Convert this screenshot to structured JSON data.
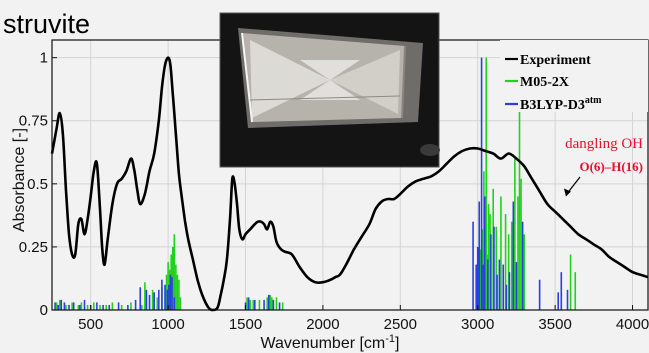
{
  "chart_data": {
    "type": "line",
    "title": "struvite",
    "xlabel": "Wavenumber [cm",
    "xlabel_sup": "-1",
    "xlabel_end": "]",
    "ylabel": "Absorbance [-]",
    "xlim": [
      250,
      4100
    ],
    "ylim": [
      0,
      1.07
    ],
    "xticks": [
      500,
      1000,
      1500,
      2000,
      2500,
      3000,
      3500,
      4000
    ],
    "yticks": [
      0,
      0.25,
      0.5,
      0.75,
      1
    ],
    "ytick_labels": [
      "0",
      "0.25",
      "0.5",
      "0.75",
      "1"
    ],
    "grid": true,
    "legend_position": "top-right",
    "series": [
      {
        "name": "Experiment",
        "color": "#000000",
        "style": "line",
        "x": [
          250,
          280,
          300,
          320,
          340,
          360,
          380,
          400,
          420,
          440,
          460,
          480,
          500,
          520,
          540,
          560,
          575,
          590,
          610,
          640,
          670,
          700,
          730,
          760,
          780,
          800,
          820,
          850,
          880,
          910,
          940,
          960,
          980,
          1000,
          1015,
          1030,
          1050,
          1070,
          1090,
          1110,
          1130,
          1160,
          1190,
          1220,
          1260,
          1290,
          1320,
          1340,
          1360,
          1380,
          1400,
          1415,
          1430,
          1445,
          1460,
          1480,
          1500,
          1530,
          1560,
          1580,
          1600,
          1620,
          1640,
          1660,
          1680,
          1700,
          1730,
          1760,
          1800,
          1850,
          1900,
          1950,
          2000,
          2050,
          2080,
          2110,
          2150,
          2200,
          2250,
          2300,
          2340,
          2380,
          2420,
          2460,
          2500,
          2550,
          2600,
          2650,
          2700,
          2750,
          2800,
          2850,
          2900,
          2950,
          3000,
          3050,
          3100,
          3150,
          3200,
          3250,
          3300,
          3350,
          3400,
          3450,
          3500,
          3550,
          3600,
          3650,
          3700,
          3750,
          3800,
          3850,
          3900,
          3950,
          4000,
          4050,
          4100
        ],
        "values": [
          0.62,
          0.72,
          0.78,
          0.7,
          0.48,
          0.3,
          0.22,
          0.22,
          0.34,
          0.36,
          0.3,
          0.36,
          0.45,
          0.55,
          0.58,
          0.4,
          0.24,
          0.18,
          0.28,
          0.42,
          0.5,
          0.52,
          0.55,
          0.6,
          0.56,
          0.48,
          0.42,
          0.46,
          0.55,
          0.62,
          0.75,
          0.88,
          0.97,
          1.0,
          0.97,
          0.86,
          0.7,
          0.54,
          0.44,
          0.35,
          0.28,
          0.2,
          0.12,
          0.06,
          0.01,
          0.0,
          0.01,
          0.06,
          0.12,
          0.2,
          0.36,
          0.52,
          0.5,
          0.42,
          0.32,
          0.28,
          0.3,
          0.32,
          0.34,
          0.35,
          0.35,
          0.34,
          0.32,
          0.35,
          0.33,
          0.27,
          0.24,
          0.23,
          0.22,
          0.17,
          0.13,
          0.11,
          0.11,
          0.12,
          0.13,
          0.14,
          0.18,
          0.24,
          0.29,
          0.34,
          0.4,
          0.43,
          0.44,
          0.44,
          0.46,
          0.49,
          0.51,
          0.52,
          0.53,
          0.55,
          0.58,
          0.61,
          0.63,
          0.64,
          0.64,
          0.63,
          0.62,
          0.6,
          0.62,
          0.6,
          0.57,
          0.52,
          0.47,
          0.42,
          0.39,
          0.36,
          0.33,
          0.3,
          0.28,
          0.26,
          0.24,
          0.21,
          0.19,
          0.17,
          0.15,
          0.14,
          0.13
        ]
      },
      {
        "name": "M05-2X",
        "color": "#22d11c",
        "style": "sticks",
        "x": [
          280,
          300,
          340,
          380,
          420,
          440,
          480,
          520,
          560,
          600,
          640,
          700,
          760,
          830,
          850,
          900,
          930,
          960,
          985,
          990,
          1000,
          1010,
          1020,
          1030,
          1040,
          1050,
          1060,
          1070,
          1080,
          1510,
          1530,
          1550,
          1590,
          1640,
          1660,
          1670,
          1700,
          1740,
          3000,
          3020,
          3030,
          3040,
          3050,
          3055,
          3060,
          3070,
          3080,
          3100,
          3120,
          3150,
          3180,
          3200,
          3220,
          3240,
          3260,
          3270,
          3280,
          3300,
          3600,
          3630
        ],
        "values": [
          0.03,
          0.04,
          0.02,
          0.03,
          0.02,
          0.03,
          0.02,
          0.03,
          0.02,
          0.02,
          0.03,
          0.02,
          0.03,
          0.02,
          0.11,
          0.08,
          0.05,
          0.09,
          0.1,
          0.14,
          0.19,
          0.16,
          0.22,
          0.25,
          0.3,
          0.18,
          0.14,
          0.12,
          0.05,
          0.05,
          0.04,
          0.04,
          0.04,
          0.05,
          0.06,
          0.05,
          0.05,
          0.03,
          0.14,
          0.24,
          0.32,
          0.55,
          0.3,
          1.0,
          0.22,
          0.42,
          0.38,
          0.48,
          0.33,
          0.45,
          0.38,
          0.3,
          0.35,
          0.6,
          0.45,
          0.9,
          0.52,
          0.3,
          0.22,
          0.15
        ]
      },
      {
        "name": "B3LYP-D3atm",
        "color": "#2b3fe0",
        "style": "sticks",
        "x": [
          270,
          290,
          310,
          330,
          360,
          390,
          430,
          460,
          500,
          540,
          580,
          620,
          680,
          740,
          790,
          820,
          860,
          880,
          910,
          940,
          960,
          980,
          995,
          1005,
          1015,
          1025,
          1040,
          1500,
          1520,
          1560,
          1620,
          1650,
          1680,
          1720,
          2970,
          2990,
          3000,
          3010,
          3025,
          3035,
          3045,
          3065,
          3085,
          3105,
          3125,
          3140,
          3165,
          3185,
          3205,
          3230,
          3250,
          3290,
          3400,
          3520,
          3540,
          3580
        ],
        "values": [
          0.03,
          0.02,
          0.04,
          0.03,
          0.02,
          0.03,
          0.02,
          0.04,
          0.02,
          0.03,
          0.02,
          0.02,
          0.03,
          0.02,
          0.04,
          0.09,
          0.08,
          0.06,
          0.07,
          0.08,
          0.12,
          0.1,
          0.08,
          0.1,
          0.14,
          0.13,
          0.05,
          0.03,
          0.05,
          0.04,
          0.04,
          0.06,
          0.04,
          0.03,
          0.35,
          0.18,
          0.25,
          0.43,
          1.0,
          0.18,
          0.45,
          0.2,
          0.3,
          0.33,
          0.14,
          0.2,
          0.18,
          0.1,
          0.15,
          0.43,
          0.19,
          0.35,
          0.12,
          0.07,
          0.15,
          0.08
        ]
      }
    ],
    "legend": [
      {
        "label": "Experiment",
        "sup": ""
      },
      {
        "label": "M05-2X",
        "sup": ""
      },
      {
        "label": "B3LYP-D3",
        "sup": "atm"
      }
    ],
    "annotations": {
      "dangling_label": "dangling OH",
      "bond_label": "O(6)–H(16)",
      "arrow_target_wavenumber": 3570,
      "arrow_target_absorbance": 0.45
    }
  },
  "inset_photo": {
    "subject": "struvite-crystal-photo",
    "colors": {
      "background": "#1a1a1a",
      "crystal": "#c9c7c4"
    }
  }
}
